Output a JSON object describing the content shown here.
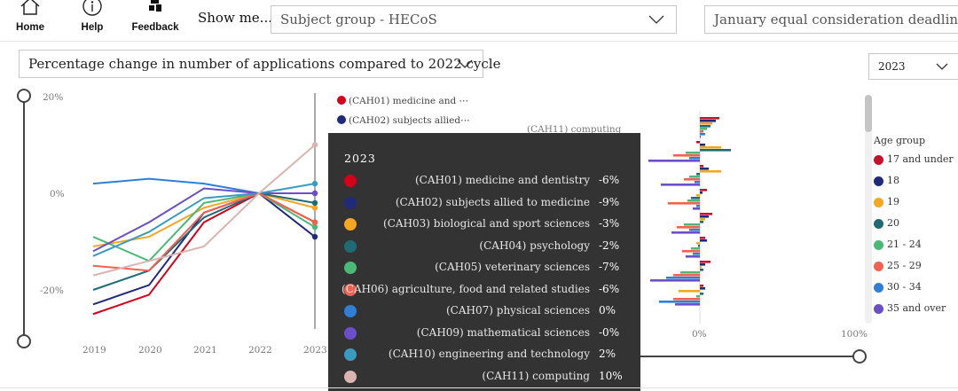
{
  "toolbar": {
    "home_label": "Home",
    "help_label": "Help",
    "feedback_label": "Feedback",
    "show_me_label": "Show me...",
    "subject_dropdown_value": "Subject group - HECoS",
    "deadline_dropdown_value": "January equal consideration deadline"
  },
  "measure_dropdown_value": "Percentage change in number of applications compared to 2022 cycle",
  "year_dropdown_value": "2023",
  "line_chart": {
    "y_ticks": [
      "20%",
      "0%",
      "-20%"
    ],
    "x_ticks": [
      "2019",
      "2020",
      "2021",
      "2022",
      "2023"
    ]
  },
  "series_legend": [
    "(CAH01) medicine and ⋯",
    "(CAH02) subjects allied⋯"
  ],
  "bar_chart": {
    "visible_category": "(CAH11) computing",
    "x_ticks": [
      "0%",
      "100%"
    ]
  },
  "tooltip": {
    "title": "2023",
    "rows": [
      {
        "name": "(CAH01) medicine and dentistry",
        "value": "-6%",
        "color": "#d4001a"
      },
      {
        "name": "(CAH02) subjects allied to medicine",
        "value": "-9%",
        "color": "#1f2a7a"
      },
      {
        "name": "(CAH03) biological and sport sciences",
        "value": "-3%",
        "color": "#f5a623"
      },
      {
        "name": "(CAH04) psychology",
        "value": "-2%",
        "color": "#1f6b73"
      },
      {
        "name": "(CAH05) veterinary sciences",
        "value": "-7%",
        "color": "#4cb877"
      },
      {
        "name": "(CAH06) agriculture, food and related studies",
        "value": "-6%",
        "color": "#f26152"
      },
      {
        "name": "(CAH07) physical sciences",
        "value": "0%",
        "color": "#2f7fd6"
      },
      {
        "name": "(CAH09) mathematical sciences",
        "value": "-0%",
        "color": "#6b4fc7"
      },
      {
        "name": "(CAH10) engineering and technology",
        "value": "2%",
        "color": "#3a9bc0"
      },
      {
        "name": "(CAH11) computing",
        "value": "10%",
        "color": "#d9b4b0"
      }
    ]
  },
  "age_legend": {
    "title": "Age group",
    "items": [
      {
        "label": "17 and under",
        "color": "#c8102e"
      },
      {
        "label": "18",
        "color": "#1f2a7a"
      },
      {
        "label": "19",
        "color": "#f5a623"
      },
      {
        "label": "20",
        "color": "#1f6b73"
      },
      {
        "label": "21 - 24",
        "color": "#4cb877"
      },
      {
        "label": "25 - 29",
        "color": "#f26152"
      },
      {
        "label": "30 - 34",
        "color": "#2f7fd6"
      },
      {
        "label": "35 and over",
        "color": "#6b4fc7"
      }
    ]
  },
  "chart_data": {
    "type": "line",
    "x": [
      2019,
      2020,
      2021,
      2022,
      2023
    ],
    "y_unit": "%",
    "ylim": [
      -30,
      20
    ],
    "series": [
      {
        "name": "(CAH01) medicine and dentistry",
        "color": "#d4001a",
        "values": [
          -25,
          -21,
          -6,
          0,
          -6
        ]
      },
      {
        "name": "(CAH02) subjects allied to medicine",
        "color": "#1f2a7a",
        "values": [
          -23,
          -19,
          -4,
          0,
          -9
        ]
      },
      {
        "name": "(CAH03) biological and sport sciences",
        "color": "#f5a623",
        "values": [
          -11,
          -9,
          -3,
          0,
          -3
        ]
      },
      {
        "name": "(CAH04) psychology",
        "color": "#1f6b73",
        "values": [
          -20,
          -16,
          -5,
          0,
          -2
        ]
      },
      {
        "name": "(CAH05) veterinary sciences",
        "color": "#4cb877",
        "values": [
          -9,
          -14,
          -2,
          0,
          -7
        ]
      },
      {
        "name": "(CAH06) agriculture, food and related studies",
        "color": "#f26152",
        "values": [
          -15,
          -16,
          -4,
          0,
          -6
        ]
      },
      {
        "name": "(CAH07) physical sciences",
        "color": "#2f7fd6",
        "values": [
          2,
          3,
          2,
          0,
          0
        ]
      },
      {
        "name": "(CAH09) mathematical sciences",
        "color": "#6b4fc7",
        "values": [
          -12,
          -6,
          1,
          0,
          0
        ]
      },
      {
        "name": "(CAH10) engineering and technology",
        "color": "#3a9bc0",
        "values": [
          -13,
          -8,
          -1,
          0,
          2
        ]
      },
      {
        "name": "(CAH11) computing",
        "color": "#d9b4b0",
        "values": [
          -17,
          -14,
          -11,
          0,
          10
        ]
      }
    ]
  }
}
